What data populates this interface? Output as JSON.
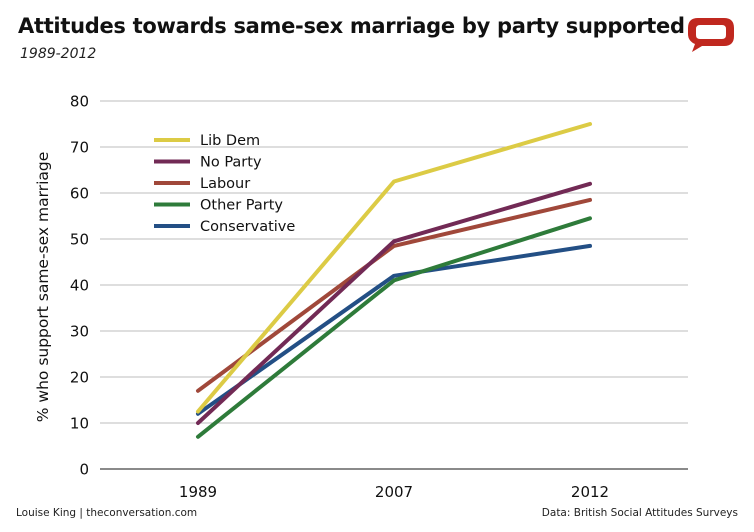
{
  "title": "Attitudes towards same-sex marriage by party supported",
  "subtitle": "1989-2012",
  "logo": {
    "icon": "speech-bubble-icon",
    "color": "#c0281f"
  },
  "footer": {
    "credit": "Louise King | theconversation.com",
    "source": "Data: British Social Attitudes Surveys"
  },
  "chart_data": {
    "type": "line",
    "categories": [
      "1989",
      "2007",
      "2012"
    ],
    "ylabel": "% who support same-sex marriage",
    "xlabel": "",
    "ylim": [
      0,
      80
    ],
    "yticks": [
      0,
      10,
      20,
      30,
      40,
      50,
      60,
      70,
      80
    ],
    "grid": true,
    "legend_position": "top-left",
    "series": [
      {
        "name": "Lib Dem",
        "color": "#dccb45",
        "values": [
          12.5,
          62.5,
          75
        ]
      },
      {
        "name": "No Party",
        "color": "#722a55",
        "values": [
          10,
          49.5,
          62
        ]
      },
      {
        "name": "Labour",
        "color": "#a0483a",
        "values": [
          17,
          48.5,
          58.5
        ]
      },
      {
        "name": "Other Party",
        "color": "#2e7b3a",
        "values": [
          7,
          41,
          54.5
        ]
      },
      {
        "name": "Conservative",
        "color": "#234f85",
        "values": [
          12,
          42,
          48.5
        ]
      }
    ]
  }
}
